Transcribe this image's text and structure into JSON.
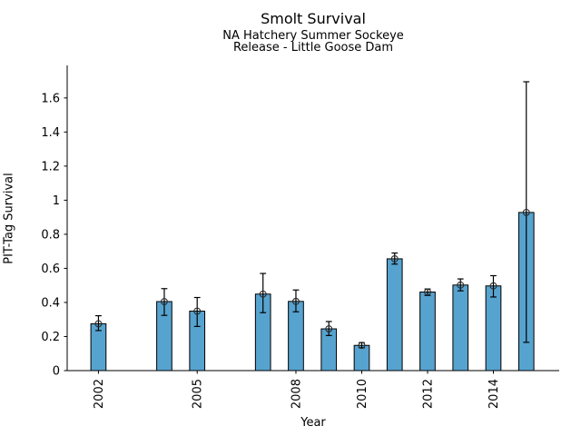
{
  "header": {
    "title": "Smolt Survival",
    "subtitle1": "NA Hatchery Summer Sockeye",
    "subtitle2": "Release - Little Goose Dam"
  },
  "chart_data": {
    "type": "bar",
    "title": "Smolt Survival",
    "subtitle_lines": [
      "NA Hatchery Summer Sockeye",
      "Release - Little Goose Dam"
    ],
    "xlabel": "Year",
    "ylabel": "PIT-Tag Survival",
    "xlim": [
      2001.05,
      2016.0
    ],
    "ylim": [
      0,
      1.775
    ],
    "grid": false,
    "legend_position": "none",
    "bar_width_years": 0.46,
    "bar_color": "#57a3cf",
    "bar_edge_color": "#000000",
    "error_bar_color": "#000000",
    "marker_style": "open-circle",
    "marker_color": "#2b2b2b",
    "x_ticks": [
      {
        "value": 2002,
        "label": "2002"
      },
      {
        "value": 2005,
        "label": "2005"
      },
      {
        "value": 2008,
        "label": "2008"
      },
      {
        "value": 2010,
        "label": "2010"
      },
      {
        "value": 2012,
        "label": "2012"
      },
      {
        "value": 2014,
        "label": "2014"
      }
    ],
    "y_ticks": [
      {
        "value": 0.0,
        "label": "0"
      },
      {
        "value": 0.2,
        "label": "0.2"
      },
      {
        "value": 0.4,
        "label": "0.4"
      },
      {
        "value": 0.6,
        "label": "0.6"
      },
      {
        "value": 0.8,
        "label": "0.8"
      },
      {
        "value": 1.0,
        "label": "1"
      },
      {
        "value": 1.2,
        "label": "1.2"
      },
      {
        "value": 1.4,
        "label": "1.4"
      },
      {
        "value": 1.6,
        "label": "1.6"
      }
    ],
    "series": [
      {
        "year": 2002,
        "value": 0.275,
        "err_lo": 0.235,
        "err_hi": 0.322
      },
      {
        "year": 2004,
        "value": 0.405,
        "err_lo": 0.324,
        "err_hi": 0.481
      },
      {
        "year": 2005,
        "value": 0.349,
        "err_lo": 0.259,
        "err_hi": 0.429
      },
      {
        "year": 2007,
        "value": 0.449,
        "err_lo": 0.34,
        "err_hi": 0.57
      },
      {
        "year": 2008,
        "value": 0.406,
        "err_lo": 0.345,
        "err_hi": 0.473
      },
      {
        "year": 2009,
        "value": 0.245,
        "err_lo": 0.206,
        "err_hi": 0.288
      },
      {
        "year": 2010,
        "value": 0.148,
        "err_lo": 0.134,
        "err_hi": 0.164
      },
      {
        "year": 2011,
        "value": 0.656,
        "err_lo": 0.625,
        "err_hi": 0.69
      },
      {
        "year": 2012,
        "value": 0.461,
        "err_lo": 0.441,
        "err_hi": 0.479
      },
      {
        "year": 2013,
        "value": 0.502,
        "err_lo": 0.468,
        "err_hi": 0.538
      },
      {
        "year": 2014,
        "value": 0.497,
        "err_lo": 0.432,
        "err_hi": 0.557
      },
      {
        "year": 2015,
        "value": 0.928,
        "err_lo": 0.166,
        "err_hi": 1.695
      }
    ]
  }
}
